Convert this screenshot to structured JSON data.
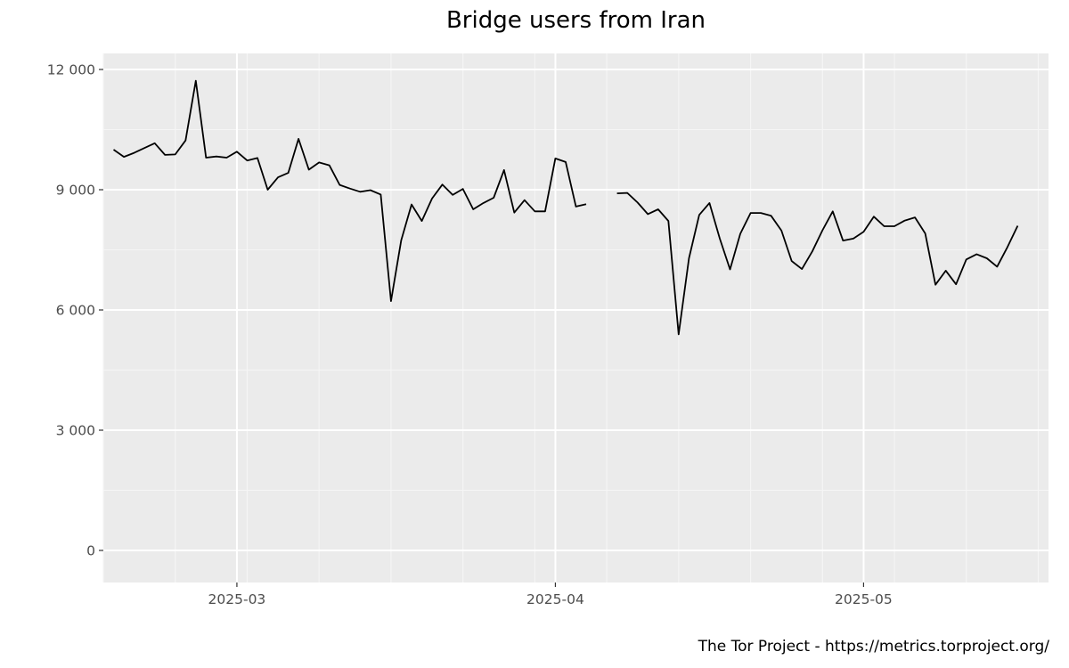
{
  "caption": "The Tor Project - https://metrics.torproject.org/",
  "colors": {
    "panel": "#ebebeb",
    "grid_major": "#ffffff",
    "grid_minor": "#f5f5f5",
    "line": "#000000",
    "tick_text": "#4d4d4d",
    "tick_mark": "#333333"
  },
  "chart_data": {
    "type": "line",
    "title": "Bridge users from Iran",
    "xlabel": "",
    "ylabel": "",
    "x_range": [
      "2025-02-16",
      "2025-05-19"
    ],
    "ylim": [
      -800,
      12400
    ],
    "y_ticks": [
      0,
      3000,
      6000,
      9000,
      12000
    ],
    "y_tick_labels": [
      "0",
      "3 000",
      "6 000",
      "9 000",
      "12 000"
    ],
    "x_ticks": [
      "2025-03-01",
      "2025-04-01",
      "2025-05-01"
    ],
    "x_tick_labels": [
      "2025-03",
      "2025-04",
      "2025-05"
    ],
    "grid": true,
    "legend": "none",
    "series": [
      {
        "dates": [
          "2025-02-17",
          "2025-02-18",
          "2025-02-19",
          "2025-02-20",
          "2025-02-21",
          "2025-02-22",
          "2025-02-23",
          "2025-02-24",
          "2025-02-25",
          "2025-02-26",
          "2025-02-27",
          "2025-02-28",
          "2025-03-01",
          "2025-03-02",
          "2025-03-03",
          "2025-03-04",
          "2025-03-05",
          "2025-03-06",
          "2025-03-07",
          "2025-03-08",
          "2025-03-09",
          "2025-03-10",
          "2025-03-11",
          "2025-03-12",
          "2025-03-13",
          "2025-03-14",
          "2025-03-15",
          "2025-03-16",
          "2025-03-17",
          "2025-03-18",
          "2025-03-19",
          "2025-03-20",
          "2025-03-21",
          "2025-03-22",
          "2025-03-23",
          "2025-03-24",
          "2025-03-25",
          "2025-03-26",
          "2025-03-27",
          "2025-03-28",
          "2025-03-29",
          "2025-03-30",
          "2025-03-31",
          "2025-04-01",
          "2025-04-02",
          "2025-04-03",
          "2025-04-04",
          "2025-04-05",
          "2025-04-06",
          "2025-04-07",
          "2025-04-08",
          "2025-04-09",
          "2025-04-10",
          "2025-04-11",
          "2025-04-12",
          "2025-04-13",
          "2025-04-14",
          "2025-04-15",
          "2025-04-16",
          "2025-04-17",
          "2025-04-18",
          "2025-04-19",
          "2025-04-20",
          "2025-04-21",
          "2025-04-22",
          "2025-04-23",
          "2025-04-24",
          "2025-04-25",
          "2025-04-26",
          "2025-04-27",
          "2025-04-28",
          "2025-04-29",
          "2025-04-30",
          "2025-05-01",
          "2025-05-02",
          "2025-05-03",
          "2025-05-04",
          "2025-05-05",
          "2025-05-06",
          "2025-05-07",
          "2025-05-08",
          "2025-05-09",
          "2025-05-10",
          "2025-05-11",
          "2025-05-12",
          "2025-05-13",
          "2025-05-14",
          "2025-05-15",
          "2025-05-16"
        ],
        "values": [
          10000,
          9820,
          9920,
          10040,
          10160,
          9870,
          9880,
          10230,
          11720,
          9800,
          9830,
          9800,
          9950,
          9730,
          9790,
          9000,
          9310,
          9420,
          10270,
          9500,
          9680,
          9610,
          9120,
          9030,
          8950,
          8990,
          8880,
          6220,
          7740,
          8630,
          8220,
          8780,
          9130,
          8870,
          9020,
          8510,
          8670,
          8800,
          9490,
          8430,
          8740,
          8460,
          8460,
          9780,
          9690,
          8580,
          8640,
          null,
          null,
          8910,
          8920,
          8680,
          8390,
          8510,
          8220,
          5390,
          7290,
          8370,
          8670,
          7780,
          7010,
          7900,
          8420,
          8420,
          8350,
          7980,
          7220,
          7020,
          7460,
          7990,
          8460,
          7730,
          7780,
          7950,
          8330,
          8090,
          8090,
          8230,
          8310,
          7910,
          6630,
          6980,
          6640,
          7260,
          7390,
          7290,
          7080,
          7570,
          8100
        ]
      }
    ]
  }
}
